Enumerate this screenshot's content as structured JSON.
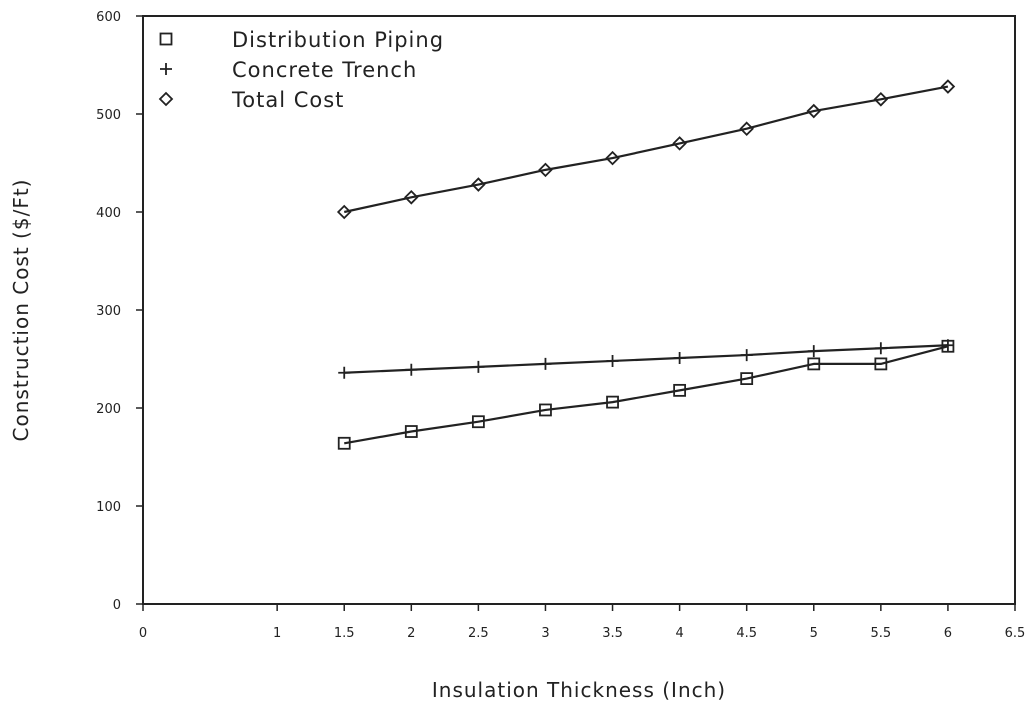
{
  "chart_data": {
    "type": "line",
    "title": "",
    "xlabel": "Insulation Thickness (Inch)",
    "ylabel": "Construction Cost ($/Ft)",
    "xlim": [
      0,
      6.5
    ],
    "ylim": [
      0,
      600
    ],
    "xticks": [
      "0",
      "1",
      "1.5",
      "2",
      "2.5",
      "3",
      "3.5",
      "4",
      "4.5",
      "5",
      "5.5",
      "6",
      "6.5"
    ],
    "xtick_values": [
      0,
      1,
      1.5,
      2,
      2.5,
      3,
      3.5,
      4,
      4.5,
      5,
      5.5,
      6,
      6.5
    ],
    "yticks": [
      "0",
      "100",
      "200",
      "300",
      "400",
      "500",
      "600"
    ],
    "ytick_values": [
      0,
      100,
      200,
      300,
      400,
      500,
      600
    ],
    "grid": false,
    "legend_position": "top-left",
    "x": [
      1.5,
      2,
      2.5,
      3,
      3.5,
      4,
      4.5,
      5,
      5.5,
      6
    ],
    "series": [
      {
        "name": "Distribution Piping",
        "marker": "square",
        "values": [
          164,
          176,
          186,
          198,
          206,
          218,
          230,
          245,
          245,
          263
        ]
      },
      {
        "name": "Concrete Trench",
        "marker": "plus",
        "values": [
          236,
          239,
          242,
          245,
          248,
          251,
          254,
          258,
          261,
          264
        ]
      },
      {
        "name": "Total Cost",
        "marker": "diamond",
        "values": [
          400,
          415,
          428,
          443,
          455,
          470,
          485,
          503,
          515,
          528
        ]
      }
    ]
  }
}
